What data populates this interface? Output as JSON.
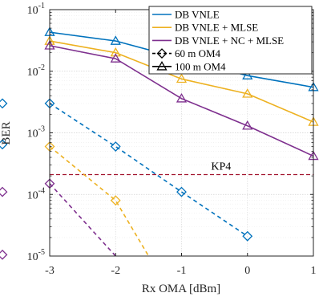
{
  "chart_data": {
    "type": "line",
    "xlabel": "Rx OMA [dBm]",
    "ylabel": "BER",
    "xlim": [
      -3,
      1
    ],
    "ylim": [
      1e-05,
      0.1
    ],
    "yscale": "log",
    "grid": true,
    "xticks": [
      "-3",
      "-2",
      "-1",
      "0",
      "1"
    ],
    "yticks": [
      {
        "value": 1e-05,
        "base": "10",
        "exp": "-5"
      },
      {
        "value": 0.0001,
        "base": "10",
        "exp": "-4"
      },
      {
        "value": 0.001,
        "base": "10",
        "exp": "-3"
      },
      {
        "value": 0.01,
        "base": "10",
        "exp": "-2"
      },
      {
        "value": 0.1,
        "base": "10",
        "exp": "-1"
      }
    ],
    "legend_position": "top-right",
    "legend": [
      {
        "label": "DB VNLE",
        "color": "#0072BD",
        "kind": "line"
      },
      {
        "label": "DB VNLE + MLSE",
        "color": "#EDB120",
        "kind": "line"
      },
      {
        "label": "DB VNLE + NC + MLSE",
        "color": "#7E2F8E",
        "kind": "line"
      },
      {
        "label": "60 m OM4",
        "color": "#000000",
        "kind": "dashed-diamond"
      },
      {
        "label": "100 m OM4",
        "color": "#000000",
        "kind": "solid-triangle"
      }
    ],
    "series": [
      {
        "color": "#0072BD",
        "dash": false,
        "marker": "triangle",
        "x": [
          -3,
          -2,
          -1,
          0,
          1
        ],
        "y": [
          0.043,
          0.031,
          0.016,
          0.0085,
          0.0055
        ]
      },
      {
        "color": "#EDB120",
        "dash": false,
        "marker": "triangle",
        "x": [
          -3,
          -2,
          -1,
          0,
          1
        ],
        "y": [
          0.031,
          0.02,
          0.0075,
          0.0043,
          0.0015
        ]
      },
      {
        "color": "#7E2F8E",
        "dash": false,
        "marker": "triangle",
        "x": [
          -3,
          -2,
          -1,
          0,
          1
        ],
        "y": [
          0.026,
          0.016,
          0.0036,
          0.0013,
          0.00042
        ]
      },
      {
        "color": "#0072BD",
        "dash": true,
        "marker": "diamond",
        "x": [
          -3,
          -2,
          -1,
          0
        ],
        "y": [
          0.003,
          0.0006,
          0.00011,
          2.1e-05
        ]
      },
      {
        "color": "#EDB120",
        "dash": true,
        "marker": "diamond",
        "x": [
          -3,
          -2,
          -1.5
        ],
        "y": [
          0.0006,
          8e-05,
          1e-05
        ]
      },
      {
        "color": "#7E2F8E",
        "dash": true,
        "marker": "diamond",
        "x": [
          -3,
          -2
        ],
        "y": [
          0.00015,
          1e-05
        ]
      }
    ],
    "reference_line": {
      "label": "KP4",
      "y": 0.00021,
      "color": "#A2142F"
    },
    "partial_left_markers": [
      {
        "color": "#0072BD",
        "y": 0.003
      },
      {
        "color": "#0072BD",
        "y": 0.00065
      },
      {
        "color": "#7E2F8E",
        "y": 0.00011
      },
      {
        "color": "#7E2F8E",
        "y": 1.05e-05
      }
    ]
  }
}
